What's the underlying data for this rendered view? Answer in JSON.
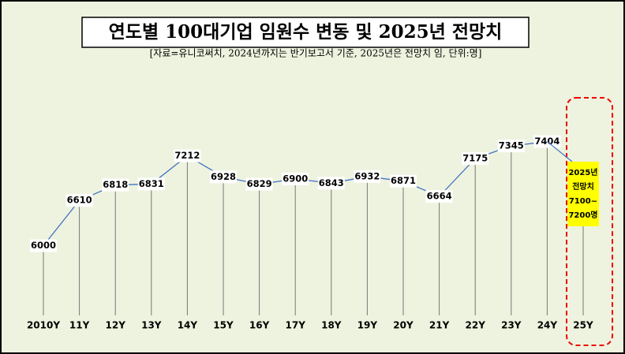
{
  "chart_data": {
    "type": "line",
    "title": "연도별 100대기업 임원수 변동 및 2025년 전망치",
    "subtitle": "[자료=유니코써치, 2024년까지는 반기보고서 기준, 2025년은 전망치 임, 단위:명]",
    "categories": [
      "2010Y",
      "11Y",
      "12Y",
      "13Y",
      "14Y",
      "15Y",
      "16Y",
      "17Y",
      "18Y",
      "19Y",
      "20Y",
      "21Y",
      "22Y",
      "23Y",
      "24Y",
      "25Y"
    ],
    "values": [
      6000,
      6610,
      6818,
      6831,
      7212,
      6928,
      6829,
      6900,
      6843,
      6932,
      6871,
      6664,
      7175,
      7345,
      7404,
      null
    ],
    "color": "#4472c4",
    "ylim": [
      5060,
      8250
    ],
    "annotation": [
      "2025년",
      "전망치",
      "7100~",
      "7200명"
    ]
  }
}
